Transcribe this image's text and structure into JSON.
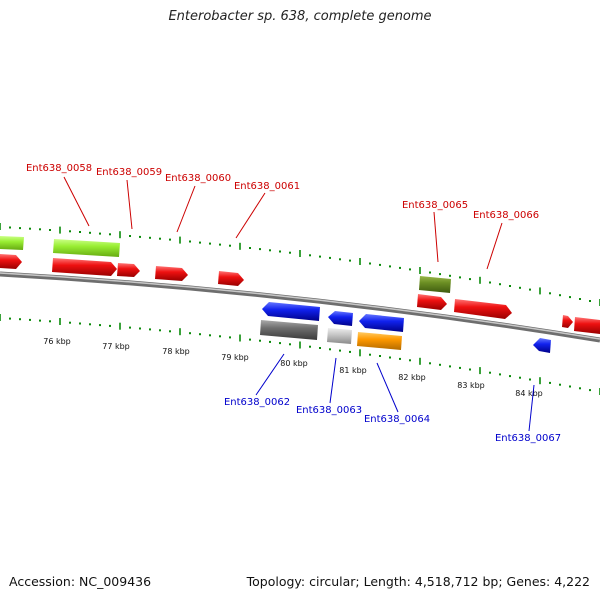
{
  "title": "Enterobacter sp. 638, complete genome",
  "footer": {
    "accession": "Accession: NC_009436",
    "summary": "Topology: circular; Length: 4,518,712 bp; Genes: 4,222"
  },
  "colors": {
    "top_label": "#cc0000",
    "bottom_label": "#0000cc",
    "tick": "#0a8a0a",
    "backbone": "#808080",
    "gene_red": "#ee1111",
    "gene_lime": "#99ee33",
    "gene_olive": "#6b8e23",
    "gene_blue": "#1122ee",
    "gene_gray": "#6e6e6e",
    "gene_lightgray": "#c8c8c8",
    "gene_orange": "#ff9900"
  },
  "kbp_ticks": [
    "76 kbp",
    "77 kbp",
    "78 kbp",
    "79 kbp",
    "80 kbp",
    "81 kbp",
    "82 kbp",
    "83 kbp",
    "84 kbp"
  ],
  "top_labels": [
    "Ent638_0058",
    "Ent638_0059",
    "Ent638_0060",
    "Ent638_0061",
    "Ent638_0065",
    "Ent638_0066"
  ],
  "bottom_labels": [
    "Ent638_0062",
    "Ent638_0063",
    "Ent638_0064",
    "Ent638_0067"
  ]
}
